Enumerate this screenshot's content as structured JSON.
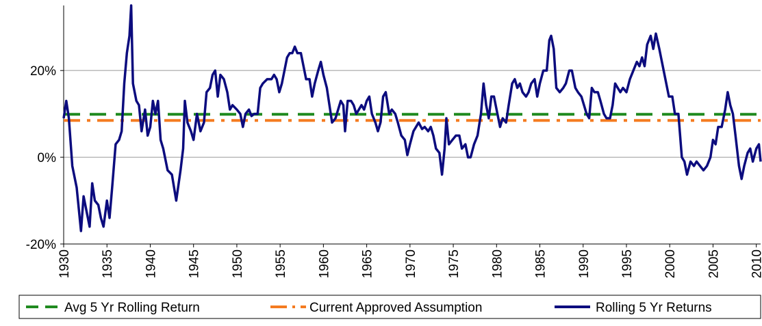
{
  "chart_data": {
    "type": "line",
    "xlim": [
      1930,
      2010.5
    ],
    "xticks": [
      1930,
      1935,
      1940,
      1945,
      1950,
      1955,
      1960,
      1965,
      1970,
      1975,
      1980,
      1985,
      1990,
      1995,
      2000,
      2005,
      2010
    ],
    "ylim": [
      -20,
      35
    ],
    "yticks": [
      {
        "value": -20,
        "label": "-20%"
      },
      {
        "value": 0,
        "label": "0%"
      },
      {
        "value": 20,
        "label": "20%"
      }
    ],
    "grid": true,
    "legend": "bottom",
    "series": [
      {
        "name": "Avg 5 Yr Rolling Return",
        "color": "#1f8a1f",
        "linestyle": "dashed",
        "x": [
          1930,
          2010.5
        ],
        "values": [
          9.9,
          9.9
        ]
      },
      {
        "name": "Current Approved Assumption",
        "color": "#f47b20",
        "linestyle": "dashdot",
        "x": [
          1930,
          2010.5
        ],
        "values": [
          8.5,
          8.5
        ]
      },
      {
        "name": "Rolling 5 Yr Returns",
        "color": "#0c0c7e",
        "linestyle": "solid",
        "x": [
          1930.0,
          1930.3,
          1930.6,
          1931.0,
          1931.5,
          1932.0,
          1932.3,
          1932.7,
          1933.0,
          1933.3,
          1933.6,
          1934.0,
          1934.3,
          1934.6,
          1935.0,
          1935.3,
          1935.6,
          1936.0,
          1936.4,
          1936.7,
          1937.0,
          1937.3,
          1937.6,
          1937.8,
          1938.0,
          1938.4,
          1938.7,
          1939.0,
          1939.4,
          1939.7,
          1940.0,
          1940.3,
          1940.6,
          1940.9,
          1941.2,
          1941.5,
          1942.0,
          1942.5,
          1943.0,
          1943.5,
          1943.8,
          1944.0,
          1944.3,
          1944.7,
          1945.0,
          1945.4,
          1945.8,
          1946.2,
          1946.5,
          1946.9,
          1947.2,
          1947.5,
          1947.8,
          1948.1,
          1948.5,
          1948.9,
          1949.2,
          1949.5,
          1950.0,
          1950.4,
          1950.7,
          1951.0,
          1951.4,
          1951.7,
          1952.0,
          1952.4,
          1952.7,
          1953.0,
          1953.5,
          1954.0,
          1954.3,
          1954.6,
          1954.9,
          1955.2,
          1955.5,
          1955.8,
          1956.1,
          1956.4,
          1956.7,
          1957.0,
          1957.4,
          1957.7,
          1958.0,
          1958.4,
          1958.7,
          1959.0,
          1959.4,
          1959.7,
          1960.0,
          1960.4,
          1960.7,
          1961.0,
          1961.4,
          1961.7,
          1962.0,
          1962.3,
          1962.5,
          1962.8,
          1963.2,
          1963.5,
          1963.8,
          1964.1,
          1964.4,
          1964.7,
          1965.0,
          1965.3,
          1965.6,
          1966.0,
          1966.3,
          1966.6,
          1966.9,
          1967.2,
          1967.6,
          1967.9,
          1968.3,
          1968.6,
          1969.0,
          1969.4,
          1969.7,
          1970.0,
          1970.4,
          1970.7,
          1971.0,
          1971.4,
          1971.7,
          1972.1,
          1972.4,
          1972.7,
          1973.0,
          1973.4,
          1973.7,
          1974.0,
          1974.2,
          1974.5,
          1974.9,
          1975.3,
          1975.7,
          1976.0,
          1976.4,
          1976.7,
          1977.0,
          1977.4,
          1977.8,
          1978.2,
          1978.5,
          1978.8,
          1979.1,
          1979.4,
          1979.7,
          1980.0,
          1980.4,
          1980.7,
          1981.1,
          1981.4,
          1981.8,
          1982.1,
          1982.4,
          1982.7,
          1983.0,
          1983.4,
          1983.7,
          1984.0,
          1984.4,
          1984.7,
          1985.0,
          1985.4,
          1985.8,
          1986.1,
          1986.3,
          1986.6,
          1986.9,
          1987.3,
          1987.7,
          1988.0,
          1988.4,
          1988.7,
          1989.1,
          1989.4,
          1989.8,
          1990.1,
          1990.4,
          1990.7,
          1991.0,
          1991.3,
          1991.7,
          1992.0,
          1992.4,
          1992.7,
          1993.1,
          1993.4,
          1993.7,
          1994.0,
          1994.3,
          1994.6,
          1995.0,
          1995.4,
          1995.8,
          1996.2,
          1996.5,
          1996.8,
          1997.1,
          1997.4,
          1997.8,
          1998.1,
          1998.4,
          1998.8,
          1999.1,
          1999.5,
          1999.9,
          2000.3,
          2000.6,
          2001.0,
          2001.4,
          2001.7,
          2002.0,
          2002.4,
          2002.8,
          2003.1,
          2003.5,
          2003.9,
          2004.3,
          2004.7,
          2005.0,
          2005.3,
          2005.6,
          2006.0,
          2006.4,
          2006.7,
          2007.0,
          2007.3,
          2007.6,
          2008.0,
          2008.3,
          2008.6,
          2009.0,
          2009.3,
          2009.6,
          2010.0,
          2010.3,
          2010.5
        ],
        "values": [
          9,
          13,
          9,
          -2,
          -7,
          -17,
          -9,
          -13,
          -16,
          -6,
          -10,
          -11,
          -14,
          -16,
          -10,
          -14,
          -7,
          3,
          4,
          6,
          17,
          24,
          28,
          35,
          17,
          13,
          12,
          6,
          11,
          5,
          7,
          13,
          10,
          13,
          4,
          2,
          -3,
          -4,
          -10,
          -3,
          2,
          13,
          8,
          6,
          4,
          10,
          6,
          8,
          15,
          16,
          19,
          20,
          14,
          19,
          18,
          15,
          11,
          12,
          11,
          10,
          7,
          10,
          11,
          9.5,
          10,
          10,
          16,
          17,
          18,
          18,
          19,
          18,
          15,
          17,
          20,
          23,
          24,
          24,
          25.5,
          24,
          24,
          21,
          18,
          18,
          14,
          17,
          20,
          22,
          19,
          16,
          12,
          8,
          9,
          11,
          13,
          12,
          6,
          13,
          13,
          12,
          10,
          11,
          12,
          11,
          13,
          14,
          10,
          8,
          6,
          8,
          14,
          15,
          10,
          11,
          10,
          8,
          5,
          4,
          0.5,
          3,
          6,
          7,
          8,
          6.5,
          7,
          6,
          7,
          5,
          2,
          1,
          -4,
          2,
          9,
          3,
          4,
          5,
          5,
          2,
          3,
          0,
          0,
          3,
          5,
          10,
          17,
          12,
          9,
          14,
          14,
          11,
          7,
          9,
          8,
          12,
          17,
          18,
          16,
          17,
          15,
          14,
          15,
          17,
          18,
          14,
          17,
          20,
          20,
          27,
          28,
          25,
          16,
          15,
          16,
          17,
          20,
          20,
          16,
          15,
          14,
          12,
          10,
          9,
          16,
          15,
          15,
          13,
          10,
          9,
          9,
          12,
          17,
          16,
          15,
          16,
          15,
          18,
          20,
          22,
          21,
          23,
          21,
          26,
          28,
          25,
          28.5,
          25,
          22,
          18,
          14,
          14,
          10,
          10,
          0,
          -1,
          -4,
          -1,
          -2,
          -1,
          -2,
          -3,
          -2,
          0,
          4,
          3,
          7,
          7,
          11,
          15,
          12,
          10,
          5,
          -2,
          -5,
          -2,
          1,
          2,
          -1,
          2,
          3,
          -1
        ]
      }
    ]
  }
}
